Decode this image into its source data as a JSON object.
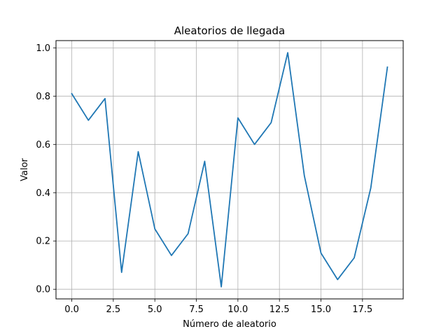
{
  "chart_data": {
    "type": "line",
    "title": "Aleatorios de llegada",
    "xlabel": "Número de aleatorio",
    "ylabel": "Valor",
    "xlim": [
      -0.95,
      19.95
    ],
    "ylim": [
      -0.04,
      1.03
    ],
    "grid": true,
    "x_ticks": [
      0.0,
      2.5,
      5.0,
      7.5,
      10.0,
      12.5,
      15.0,
      17.5
    ],
    "x_tick_labels": [
      "0.0",
      "2.5",
      "5.0",
      "7.5",
      "10.0",
      "12.5",
      "15.0",
      "17.5"
    ],
    "y_ticks": [
      0.0,
      0.2,
      0.4,
      0.6,
      0.8,
      1.0
    ],
    "y_tick_labels": [
      "0.0",
      "0.2",
      "0.4",
      "0.6",
      "0.8",
      "1.0"
    ],
    "series": [
      {
        "color": "#1f77b4",
        "x": [
          0,
          1,
          2,
          3,
          4,
          5,
          6,
          7,
          8,
          9,
          10,
          11,
          12,
          13,
          14,
          15,
          16,
          17,
          18,
          19
        ],
        "values": [
          0.81,
          0.7,
          0.79,
          0.07,
          0.57,
          0.25,
          0.14,
          0.23,
          0.53,
          0.01,
          0.71,
          0.6,
          0.69,
          0.98,
          0.47,
          0.15,
          0.04,
          0.13,
          0.42,
          0.92
        ]
      }
    ]
  }
}
